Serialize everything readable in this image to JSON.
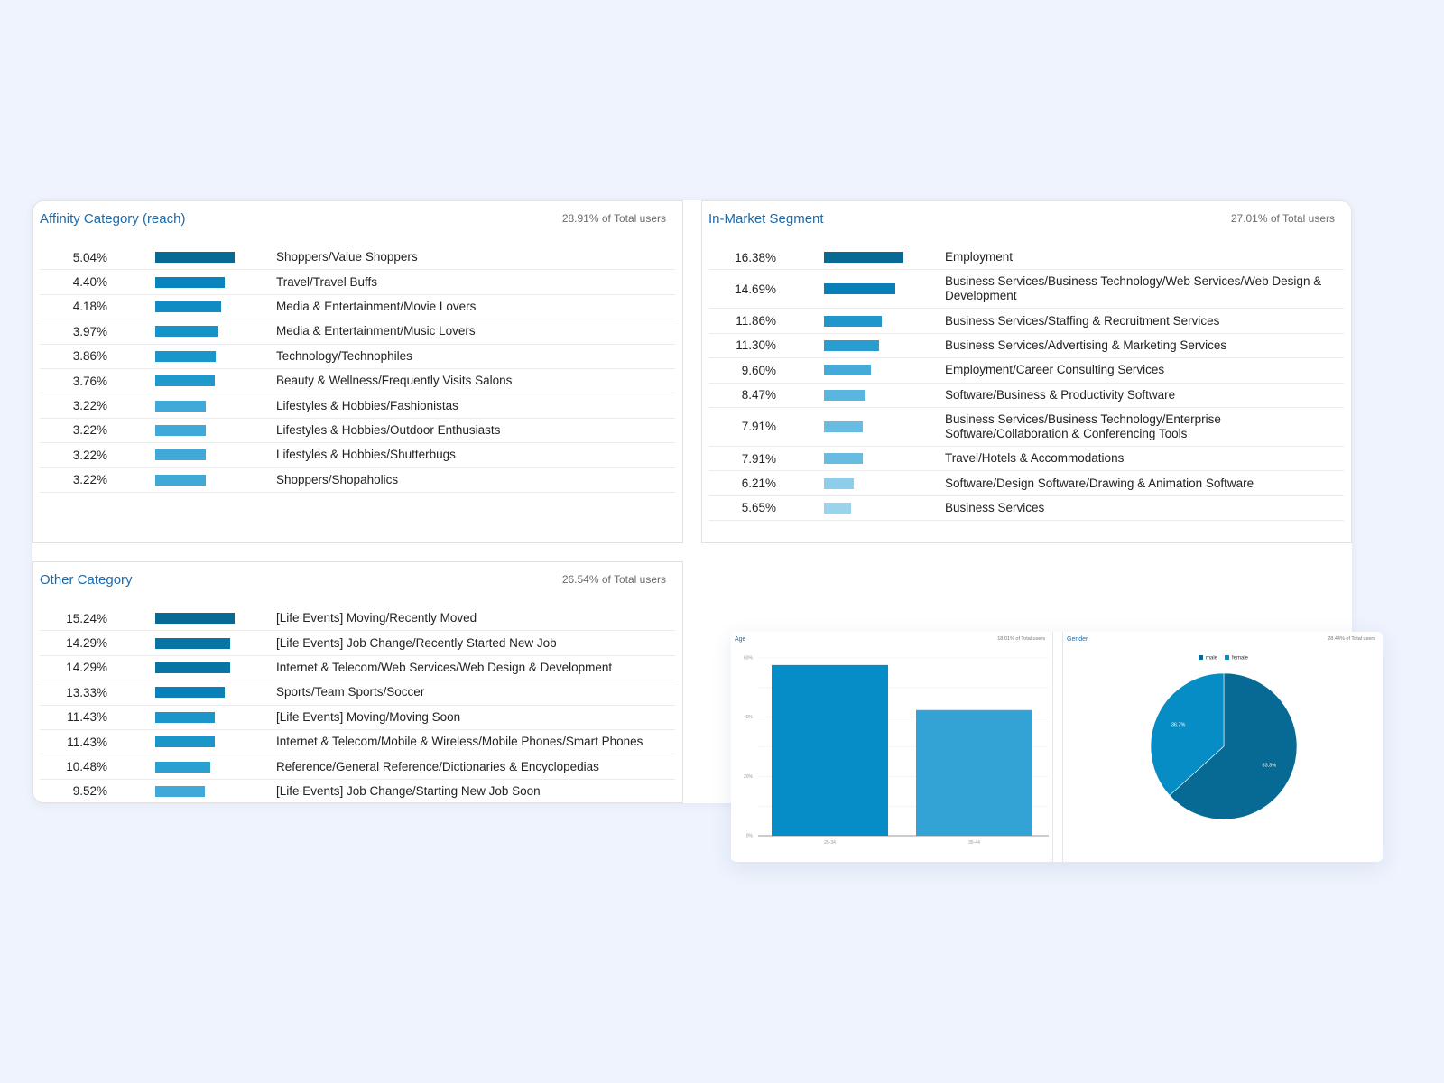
{
  "colors": {
    "title": "#1a6aad",
    "bar_shades": [
      "#066a94",
      "#0a80b8",
      "#1591c9",
      "#229ccf",
      "#2ea4d4",
      "#3aa8d8",
      "#48aedb",
      "#5ab8e0",
      "#7cc6e7",
      "#9dd3ee"
    ],
    "age_bars": [
      "#068cc6",
      "#33a2d4"
    ],
    "gender_male": "#066a94",
    "gender_female": "#078dc6"
  },
  "affinity": {
    "title": "Affinity Category (reach)",
    "subtitle": "28.91% of Total users",
    "rows": [
      {
        "pct": "5.04%",
        "value": 5.04,
        "label": "Shoppers/Value Shoppers",
        "color": "#066a94"
      },
      {
        "pct": "4.40%",
        "value": 4.4,
        "label": "Travel/Travel Buffs",
        "color": "#0a84bd"
      },
      {
        "pct": "4.18%",
        "value": 4.18,
        "label": "Media & Entertainment/Movie Lovers",
        "color": "#108bc3"
      },
      {
        "pct": "3.97%",
        "value": 3.97,
        "label": "Media & Entertainment/Music Lovers",
        "color": "#1893c8"
      },
      {
        "pct": "3.86%",
        "value": 3.86,
        "label": "Technology/Technophiles",
        "color": "#1b96ca"
      },
      {
        "pct": "3.76%",
        "value": 3.76,
        "label": "Beauty & Wellness/Frequently Visits Salons",
        "color": "#1f99cc"
      },
      {
        "pct": "3.22%",
        "value": 3.22,
        "label": "Lifestyles & Hobbies/Fashionistas",
        "color": "#40a9d8"
      },
      {
        "pct": "3.22%",
        "value": 3.22,
        "label": "Lifestyles & Hobbies/Outdoor Enthusiasts",
        "color": "#40a9d8"
      },
      {
        "pct": "3.22%",
        "value": 3.22,
        "label": "Lifestyles & Hobbies/Shutterbugs",
        "color": "#40a9d8"
      },
      {
        "pct": "3.22%",
        "value": 3.22,
        "label": "Shoppers/Shopaholics",
        "color": "#40a9d8"
      }
    ]
  },
  "inmarket": {
    "title": "In-Market Segment",
    "subtitle": "27.01% of Total users",
    "rows": [
      {
        "pct": "16.38%",
        "value": 16.38,
        "label": "Employment",
        "color": "#066a94"
      },
      {
        "pct": "14.69%",
        "value": 14.69,
        "label": "Business Services/Business Technology/Web Services/Web Design & Development",
        "color": "#0a7fb7"
      },
      {
        "pct": "11.86%",
        "value": 11.86,
        "label": "Business Services/Staffing & Recruitment Services",
        "color": "#1f97cc"
      },
      {
        "pct": "11.30%",
        "value": 11.3,
        "label": "Business Services/Advertising & Marketing Services",
        "color": "#279dd0"
      },
      {
        "pct": "9.60%",
        "value": 9.6,
        "label": "Employment/Career Consulting Services",
        "color": "#44aad9"
      },
      {
        "pct": "8.47%",
        "value": 8.47,
        "label": "Software/Business & Productivity Software",
        "color": "#5ab5df"
      },
      {
        "pct": "7.91%",
        "value": 7.91,
        "label": "Business Services/Business Technology/Enterprise Software/Collaboration & Conferencing Tools",
        "color": "#68bbe1"
      },
      {
        "pct": "7.91%",
        "value": 7.91,
        "label": "Travel/Hotels & Accommodations",
        "color": "#68bbe1"
      },
      {
        "pct": "6.21%",
        "value": 6.21,
        "label": "Software/Design Software/Drawing & Animation Software",
        "color": "#8ecde9"
      },
      {
        "pct": "5.65%",
        "value": 5.65,
        "label": "Business Services",
        "color": "#9bd2ec"
      }
    ]
  },
  "other": {
    "title": "Other Category",
    "subtitle": "26.54% of Total users",
    "rows": [
      {
        "pct": "15.24%",
        "value": 15.24,
        "label": "[Life Events] Moving/Recently Moved",
        "color": "#066a94"
      },
      {
        "pct": "14.29%",
        "value": 14.29,
        "label": "[Life Events] Job Change/Recently Started New Job",
        "color": "#0874a3"
      },
      {
        "pct": "14.29%",
        "value": 14.29,
        "label": "Internet & Telecom/Web Services/Web Design & Development",
        "color": "#0874a3"
      },
      {
        "pct": "13.33%",
        "value": 13.33,
        "label": "Sports/Team Sports/Soccer",
        "color": "#0a80b8"
      },
      {
        "pct": "11.43%",
        "value": 11.43,
        "label": "[Life Events] Moving/Moving Soon",
        "color": "#1b96ca"
      },
      {
        "pct": "11.43%",
        "value": 11.43,
        "label": "Internet & Telecom/Mobile & Wireless/Mobile Phones/Smart Phones",
        "color": "#1b96ca"
      },
      {
        "pct": "10.48%",
        "value": 10.48,
        "label": "Reference/General Reference/Dictionaries & Encyclopedias",
        "color": "#2c9fd1"
      },
      {
        "pct": "9.52%",
        "value": 9.52,
        "label": "[Life Events] Job Change/Starting New Job Soon",
        "color": "#40a9d8"
      }
    ]
  },
  "age": {
    "title": "Age",
    "subtitle": "18.01% of Total users"
  },
  "gender": {
    "title": "Gender",
    "subtitle": "28.44% of Total users",
    "legend": [
      {
        "label": "male",
        "color": "#066a94"
      },
      {
        "label": "female",
        "color": "#078dc6"
      }
    ]
  },
  "chart_data": [
    {
      "type": "bar",
      "title": "Age",
      "subtitle": "18.01% of Total users",
      "categories": [
        "25-34",
        "35-44"
      ],
      "values": [
        57.6,
        42.4
      ],
      "ylabel": "",
      "xlabel": "",
      "yticks": [
        "0%",
        "20%",
        "40%",
        "60%"
      ],
      "ylim": [
        0,
        60
      ],
      "grid": true
    },
    {
      "type": "pie",
      "title": "Gender",
      "subtitle": "28.44% of Total users",
      "categories": [
        "male",
        "female"
      ],
      "values": [
        63.3,
        36.7
      ],
      "labels": [
        "63.3%",
        "36.7%"
      ],
      "legend_position": "top"
    }
  ]
}
